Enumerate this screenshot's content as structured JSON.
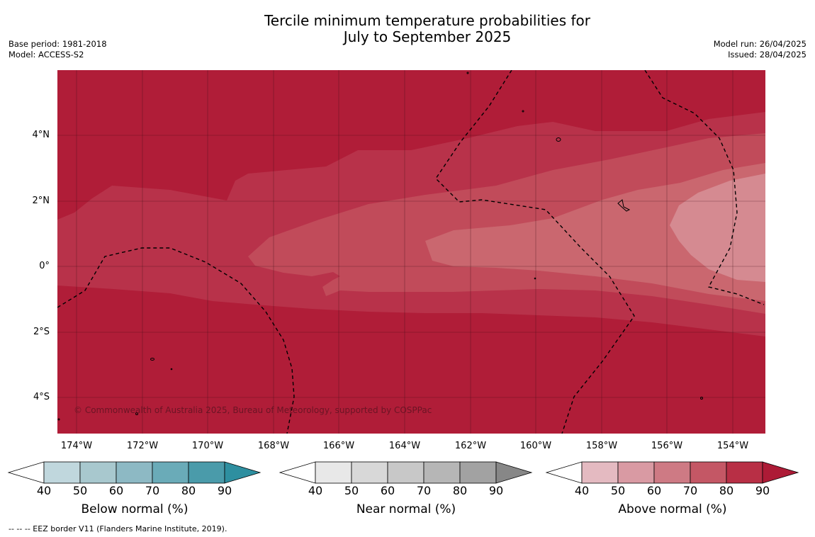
{
  "title_line1": "Tercile minimum temperature probabilities for",
  "title_line2": "July to September 2025",
  "base_period": "Base period: 1981-2018",
  "model": "Model: ACCESS-S2",
  "model_run": "Model run: 26/04/2025",
  "issued": "Issued: 28/04/2025",
  "copyright": "© Commonwealth of Australia 2025, Bureau of Meteorology, supported by COSPPac",
  "lat_labels": [
    "4°N",
    "2°N",
    "0°",
    "2°S",
    "4°S"
  ],
  "lon_labels": [
    "174°W",
    "172°W",
    "170°W",
    "168°W",
    "166°W",
    "164°W",
    "162°W",
    "160°W",
    "158°W",
    "156°W",
    "154°W"
  ],
  "colorbars": [
    {
      "title": "Below normal (%)",
      "ticks": [
        "40",
        "50",
        "60",
        "70",
        "80",
        "90"
      ],
      "colors": [
        "#ffffff",
        "#c0d7dd",
        "#a8c8ce",
        "#8db9c4",
        "#6aabb8",
        "#4a9baa",
        "#2e8fa0"
      ]
    },
    {
      "title": "Near normal (%)",
      "ticks": [
        "40",
        "50",
        "60",
        "70",
        "80",
        "90"
      ],
      "colors": [
        "#ffffff",
        "#e8e8e8",
        "#d8d8d8",
        "#c8c8c8",
        "#b6b6b6",
        "#a2a2a2",
        "#878787"
      ]
    },
    {
      "title": "Above normal (%)",
      "ticks": [
        "40",
        "50",
        "60",
        "70",
        "80",
        "90"
      ],
      "colors": [
        "#ffffff",
        "#e4bac1",
        "#d99aa3",
        "#ce7a84",
        "#c45765",
        "#b82f45",
        "#ad1b36"
      ]
    }
  ],
  "colors": {
    "above_90": "#b01d38",
    "above_80": "#b8324a",
    "above_70": "#c14b5a",
    "above_60": "#ca676f",
    "above_50": "#d58a91"
  },
  "footer": "--  --  -- EEZ border V11 (Flanders Marine Institute, 2019)."
}
